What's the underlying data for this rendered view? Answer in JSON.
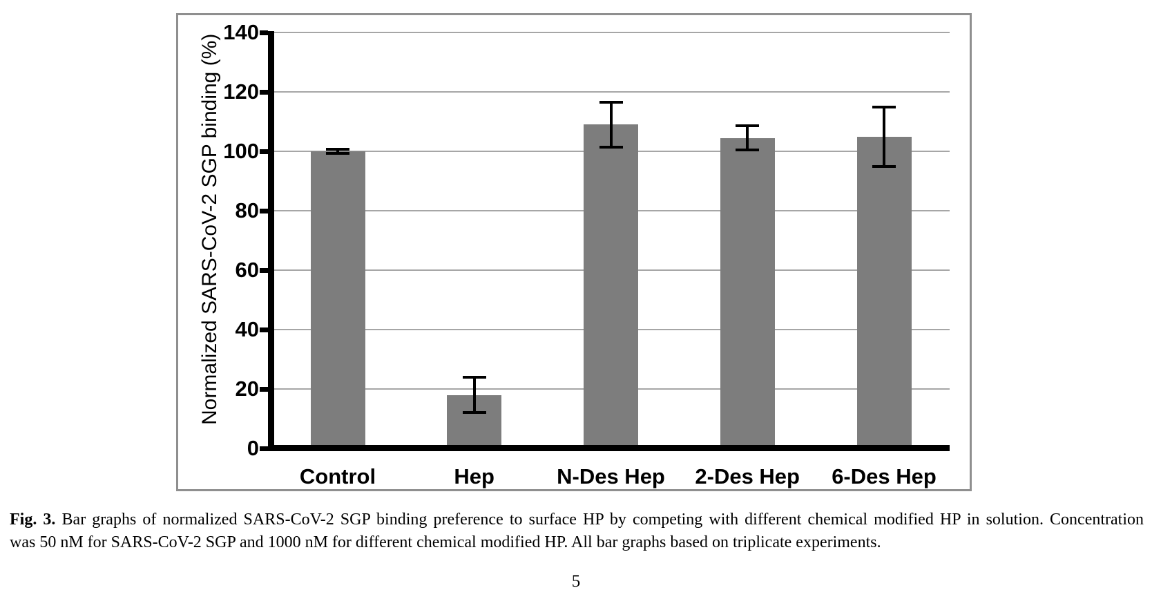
{
  "figure": {
    "caption_label": "Fig. 3.",
    "caption_line1": "Bar graphs of normalized SARS-CoV-2 SGP binding preference to surface HP by competing with different chemical modified HP in solution. Concentration",
    "caption_line2": "was 50 nM for SARS-CoV-2 SGP and 1000 nM for different chemical modified HP. All bar graphs based on triplicate experiments.",
    "page_number": "5"
  },
  "chart_data": {
    "type": "bar",
    "title": "",
    "categories": [
      "Control",
      "Hep",
      "N-Des Hep",
      "2-Des Hep",
      "6-Des Hep"
    ],
    "values": [
      100,
      18,
      109,
      104.5,
      105
    ],
    "errors": [
      0.8,
      6,
      7.5,
      4,
      10
    ],
    "xlabel": "",
    "ylabel": "Normalized SARS-CoV-2 SGP binding (%)",
    "ylim": [
      0,
      140
    ],
    "yticks": [
      0,
      20,
      40,
      60,
      80,
      100,
      120,
      140
    ],
    "grid": true,
    "legend": "none",
    "bar_color": "#7d7d7d",
    "gridline_color": "#a6a6a6",
    "axis_color": "#000000",
    "error_bar_color": "#000000"
  }
}
